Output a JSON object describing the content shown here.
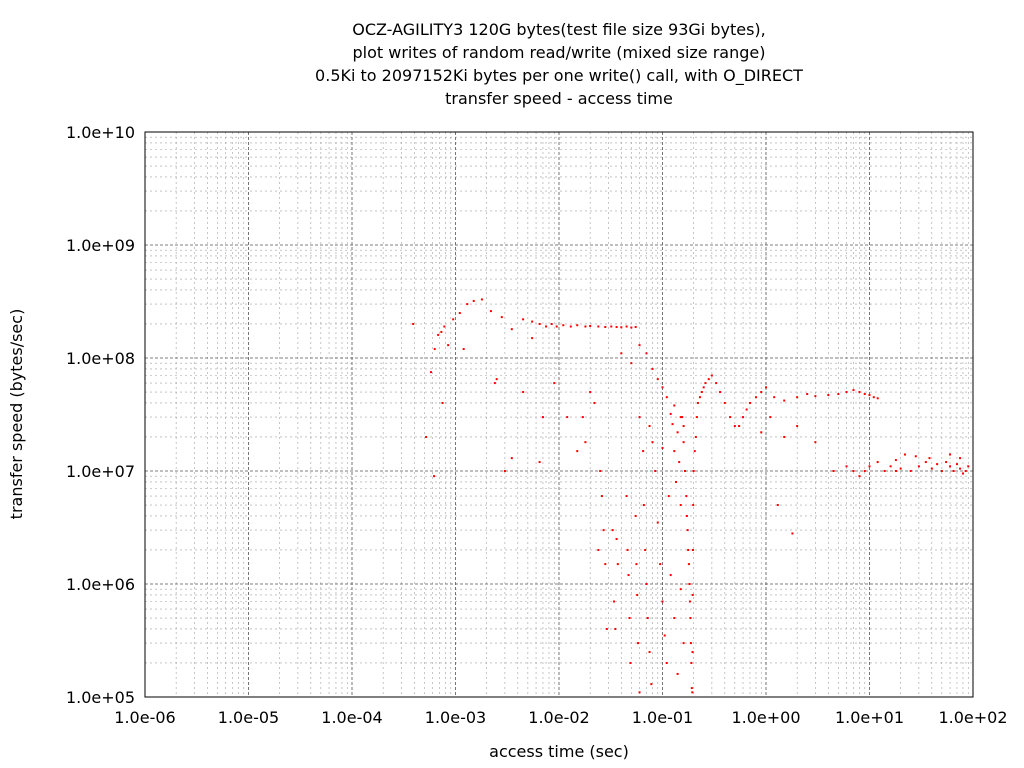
{
  "chart_data": {
    "type": "scatter",
    "title_lines": [
      "OCZ-AGILITY3 120G bytes(test file size 93Gi bytes),",
      "plot writes of random read/write (mixed size range)",
      "0.5Ki to 2097152Ki bytes per one write() call, with O_DIRECT",
      "transfer speed - access time"
    ],
    "xlabel": "access time (sec)",
    "ylabel": "transfer speed (bytes/sec)",
    "x_scale": "log",
    "y_scale": "log",
    "xlim": [
      1e-06,
      100
    ],
    "ylim": [
      100000,
      10000000000
    ],
    "x_ticks": [
      {
        "value": 1e-06,
        "label": "1.0e-06"
      },
      {
        "value": 1e-05,
        "label": "1.0e-05"
      },
      {
        "value": 0.0001,
        "label": "1.0e-04"
      },
      {
        "value": 0.001,
        "label": "1.0e-03"
      },
      {
        "value": 0.01,
        "label": "1.0e-02"
      },
      {
        "value": 0.1,
        "label": "1.0e-01"
      },
      {
        "value": 1,
        "label": "1.0e+00"
      },
      {
        "value": 10,
        "label": "1.0e+01"
      },
      {
        "value": 100,
        "label": "1.0e+02"
      }
    ],
    "y_ticks": [
      {
        "value": 100000,
        "label": "1.0e+05"
      },
      {
        "value": 1000000,
        "label": "1.0e+06"
      },
      {
        "value": 10000000,
        "label": "1.0e+07"
      },
      {
        "value": 100000000,
        "label": "1.0e+08"
      },
      {
        "value": 1000000000,
        "label": "1.0e+09"
      },
      {
        "value": 10000000000,
        "label": "1.0e+10"
      }
    ],
    "grid": true,
    "legend": "none",
    "series_color": "#ff0000",
    "series": [
      {
        "points": [
          [
            0.00039,
            200000000.0
          ],
          [
            0.00052,
            20000000.0
          ],
          [
            0.00058,
            75000000.0
          ],
          [
            0.00063,
            120000000.0
          ],
          [
            0.00068,
            160000000.0
          ],
          [
            0.00073,
            170000000.0
          ],
          [
            0.00078,
            190000000.0
          ],
          [
            0.00085,
            130000000.0
          ],
          [
            0.00095,
            220000000.0
          ],
          [
            0.0011,
            250000000.0
          ],
          [
            0.0013,
            300000000.0
          ],
          [
            0.0015,
            320000000.0
          ],
          [
            0.0018,
            330000000.0
          ],
          [
            0.0022,
            260000000.0
          ],
          [
            0.0028,
            230000000.0
          ],
          [
            0.0035,
            180000000.0
          ],
          [
            0.0045,
            220000000.0
          ],
          [
            0.0055,
            210000000.0
          ],
          [
            0.0065,
            200000000.0
          ],
          [
            0.0075,
            190000000.0
          ],
          [
            0.0085,
            200000000.0
          ],
          [
            0.0095,
            190000000.0
          ],
          [
            0.011,
            195000000.0
          ],
          [
            0.013,
            190000000.0
          ],
          [
            0.015,
            195000000.0
          ],
          [
            0.018,
            190000000.0
          ],
          [
            0.02,
            192000000.0
          ],
          [
            0.024,
            190000000.0
          ],
          [
            0.028,
            188000000.0
          ],
          [
            0.032,
            190000000.0
          ],
          [
            0.036,
            188000000.0
          ],
          [
            0.04,
            187000000.0
          ],
          [
            0.045,
            190000000.0
          ],
          [
            0.05,
            186000000.0
          ],
          [
            0.055,
            188000000.0
          ],
          [
            0.00062,
            9000000.0
          ],
          [
            0.00075,
            40000000.0
          ],
          [
            0.0012,
            120000000.0
          ],
          [
            0.0025,
            65000000.0
          ],
          [
            0.0045,
            50000000.0
          ],
          [
            0.007,
            30000000.0
          ],
          [
            0.009,
            60000000.0
          ],
          [
            0.0065,
            12000000.0
          ],
          [
            0.0055,
            150000000.0
          ],
          [
            0.0035,
            13000000.0
          ],
          [
            0.003,
            10000000.0
          ],
          [
            0.0024,
            60000000.0
          ],
          [
            0.04,
            110000000.0
          ],
          [
            0.05,
            90000000.0
          ],
          [
            0.06,
            130000000.0
          ],
          [
            0.07,
            110000000.0
          ],
          [
            0.08,
            80000000.0
          ],
          [
            0.09,
            65000000.0
          ],
          [
            0.1,
            55000000.0
          ],
          [
            0.11,
            45000000.0
          ],
          [
            0.13,
            38000000.0
          ],
          [
            0.15,
            30000000.0
          ],
          [
            0.16,
            25000000.0
          ],
          [
            0.12,
            32000000.0
          ],
          [
            0.125,
            26000000.0
          ],
          [
            0.13,
            15000000.0
          ],
          [
            0.135,
            8000000.0
          ],
          [
            0.14,
            22000000.0
          ],
          [
            0.145,
            12000000.0
          ],
          [
            0.15,
            5000000.0
          ],
          [
            0.155,
            30000000.0
          ],
          [
            0.16,
            18000000.0
          ],
          [
            0.165,
            10000000.0
          ],
          [
            0.17,
            6000000.0
          ],
          [
            0.172,
            4000000.0
          ],
          [
            0.175,
            3000000.0
          ],
          [
            0.177,
            2000000.0
          ],
          [
            0.18,
            1500000.0
          ],
          [
            0.182,
            1000000.0
          ],
          [
            0.184,
            700000.0
          ],
          [
            0.186,
            500000.0
          ],
          [
            0.188,
            300000.0
          ],
          [
            0.19,
            200000.0
          ],
          [
            0.192,
            120000.0
          ],
          [
            0.194,
            110000.0
          ],
          [
            0.195,
            250000.0
          ],
          [
            0.196,
            800000.0
          ],
          [
            0.197,
            2000000.0
          ],
          [
            0.198,
            5000000.0
          ],
          [
            0.2,
            10000000.0
          ],
          [
            0.205,
            15000000.0
          ],
          [
            0.21,
            20000000.0
          ],
          [
            0.215,
            30000000.0
          ],
          [
            0.22,
            40000000.0
          ],
          [
            0.23,
            45000000.0
          ],
          [
            0.24,
            50000000.0
          ],
          [
            0.25,
            55000000.0
          ],
          [
            0.26,
            60000000.0
          ],
          [
            0.28,
            65000000.0
          ],
          [
            0.3,
            70000000.0
          ],
          [
            0.33,
            60000000.0
          ],
          [
            0.36,
            50000000.0
          ],
          [
            0.4,
            40000000.0
          ],
          [
            0.45,
            30000000.0
          ],
          [
            0.5,
            25000000.0
          ],
          [
            0.55,
            25000000.0
          ],
          [
            0.6,
            30000000.0
          ],
          [
            0.65,
            35000000.0
          ],
          [
            0.7,
            40000000.0
          ],
          [
            0.8,
            45000000.0
          ],
          [
            0.9,
            50000000.0
          ],
          [
            1.0,
            55000000.0
          ],
          [
            1.2,
            45000000.0
          ],
          [
            1.5,
            42000000.0
          ],
          [
            2.0,
            45000000.0
          ],
          [
            2.5,
            48000000.0
          ],
          [
            3.0,
            46000000.0
          ],
          [
            4.0,
            47000000.0
          ],
          [
            5.0,
            48000000.0
          ],
          [
            6.0,
            50000000.0
          ],
          [
            7.0,
            52000000.0
          ],
          [
            8.0,
            50000000.0
          ],
          [
            9.0,
            48000000.0
          ],
          [
            10.0,
            47000000.0
          ],
          [
            11.0,
            45000000.0
          ],
          [
            12.0,
            44000000.0
          ],
          [
            1.5,
            20000000.0
          ],
          [
            2.0,
            25000000.0
          ],
          [
            3.0,
            18000000.0
          ],
          [
            1.1,
            30000000.0
          ],
          [
            0.9,
            22000000.0
          ],
          [
            1.3,
            5000000.0
          ],
          [
            1.8,
            2800000.0
          ],
          [
            4.5,
            10000000.0
          ],
          [
            6.0,
            11000000.0
          ],
          [
            7.0,
            10000000.0
          ],
          [
            8.0,
            9000000.0
          ],
          [
            9.0,
            10000000.0
          ],
          [
            10.0,
            11000000.0
          ],
          [
            12.0,
            12000000.0
          ],
          [
            14.0,
            10000000.0
          ],
          [
            16.0,
            11000000.0
          ],
          [
            18.0,
            10000000.0
          ],
          [
            20.0,
            10500000.0
          ],
          [
            25.0,
            10000000.0
          ],
          [
            30.0,
            11000000.0
          ],
          [
            35.0,
            12000000.0
          ],
          [
            40.0,
            10500000.0
          ],
          [
            45.0,
            11500000.0
          ],
          [
            50.0,
            10000000.0
          ],
          [
            55.0,
            12000000.0
          ],
          [
            60.0,
            11000000.0
          ],
          [
            65.0,
            10000000.0
          ],
          [
            70.0,
            11500000.0
          ],
          [
            75.0,
            10500000.0
          ],
          [
            80.0,
            9500000.0
          ],
          [
            85.0,
            10000000.0
          ],
          [
            90.0,
            11000000.0
          ],
          [
            22.0,
            14000000.0
          ],
          [
            28.0,
            13500000.0
          ],
          [
            38.0,
            13000000.0
          ],
          [
            60.0,
            14000000.0
          ],
          [
            75.0,
            13000000.0
          ],
          [
            18.0,
            12500000.0
          ],
          [
            0.025,
            10000000.0
          ],
          [
            0.026,
            6000000.0
          ],
          [
            0.027,
            3000000.0
          ],
          [
            0.028,
            1500000.0
          ],
          [
            0.029,
            400000.0
          ],
          [
            0.024,
            2000000.0
          ],
          [
            0.033,
            3000000.0
          ],
          [
            0.034,
            700000.0
          ],
          [
            0.035,
            400000.0
          ],
          [
            0.036,
            2500000.0
          ],
          [
            0.037,
            1500000.0
          ],
          [
            0.045,
            6000000.0
          ],
          [
            0.046,
            2000000.0
          ],
          [
            0.047,
            1200000.0
          ],
          [
            0.048,
            500000.0
          ],
          [
            0.049,
            200000.0
          ],
          [
            0.055,
            4000000.0
          ],
          [
            0.056,
            1500000.0
          ],
          [
            0.057,
            800000.0
          ],
          [
            0.058,
            300000.0
          ],
          [
            0.06,
            110000.0
          ],
          [
            0.066,
            5000000.0
          ],
          [
            0.068,
            2000000.0
          ],
          [
            0.07,
            1000000.0
          ],
          [
            0.072,
            500000.0
          ],
          [
            0.075,
            250000.0
          ],
          [
            0.078,
            130000.0
          ],
          [
            0.085,
            10000000.0
          ],
          [
            0.09,
            3500000.0
          ],
          [
            0.095,
            1500000.0
          ],
          [
            0.1,
            700000.0
          ],
          [
            0.105,
            350000.0
          ],
          [
            0.11,
            200000.0
          ],
          [
            0.115,
            6000000.0
          ],
          [
            0.12,
            1200000.0
          ],
          [
            0.13,
            500000.0
          ],
          [
            0.14,
            160000.0
          ],
          [
            0.15,
            900000.0
          ],
          [
            0.16,
            300000.0
          ],
          [
            0.065,
            15000000.0
          ],
          [
            0.075,
            25000000.0
          ],
          [
            0.08,
            18000000.0
          ],
          [
            0.1,
            16000000.0
          ],
          [
            0.06,
            30000000.0
          ],
          [
            0.017,
            30000000.0
          ],
          [
            0.018,
            18000000.0
          ],
          [
            0.02,
            50000000.0
          ],
          [
            0.022,
            40000000.0
          ],
          [
            0.015,
            15000000.0
          ],
          [
            0.012,
            30000000.0
          ]
        ]
      }
    ]
  }
}
